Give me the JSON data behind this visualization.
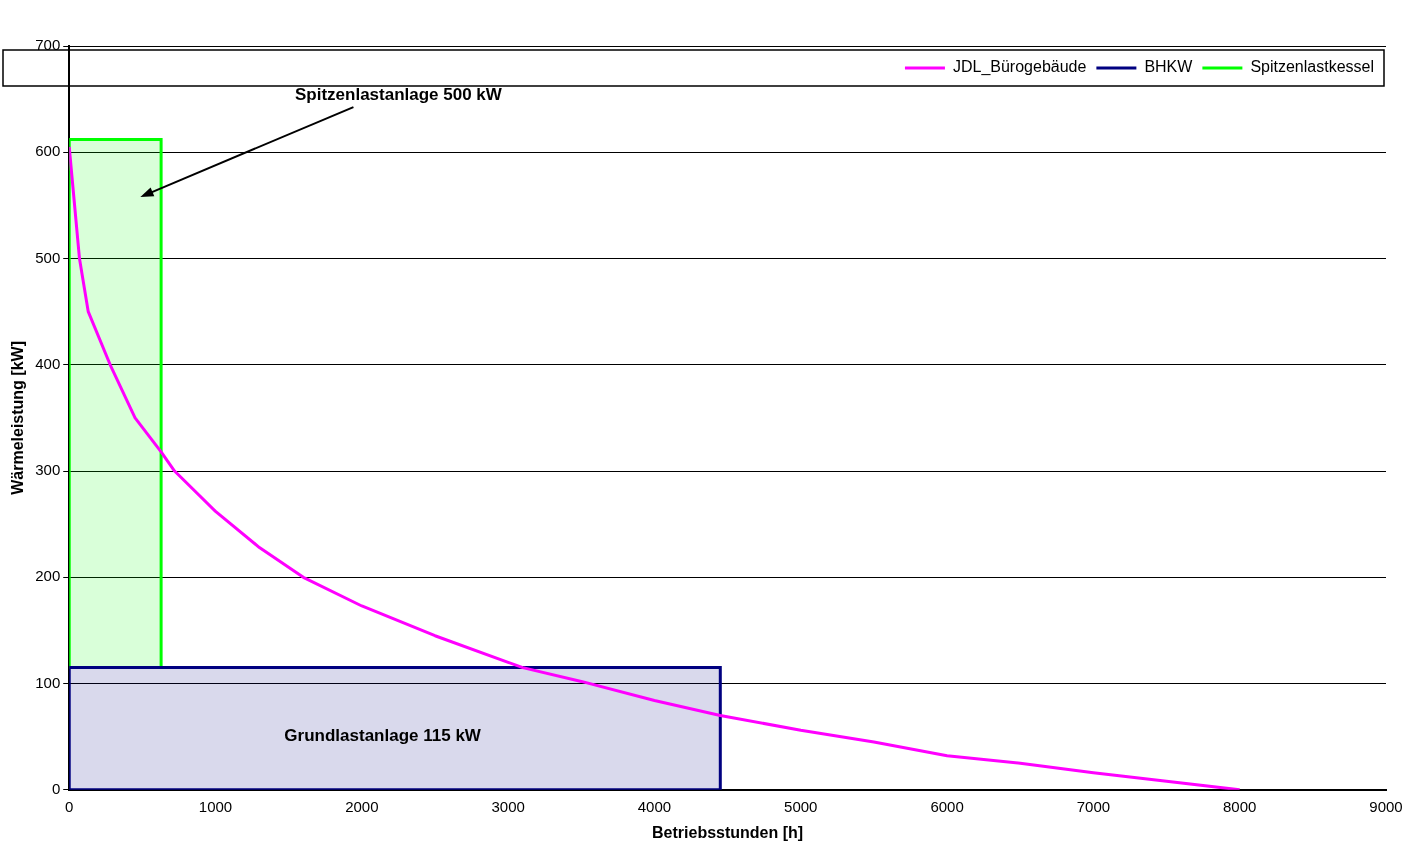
{
  "chart_data": {
    "type": "line",
    "xlabel": "Betriebsstunden [h]",
    "ylabel": "Wärmeleistung [kW]",
    "xlim": [
      0,
      9000
    ],
    "xticks": [
      0,
      1000,
      2000,
      3000,
      4000,
      5000,
      6000,
      7000,
      8000,
      9000
    ],
    "ylim": [
      0,
      700
    ],
    "yticks": [
      0,
      100,
      200,
      300,
      400,
      500,
      600,
      700
    ],
    "grid": "y",
    "legend": "top right",
    "marker": "none",
    "line_style": "solid",
    "series": [
      {
        "name": "JDL_Bürogebäude",
        "color": "#ff00ff",
        "x": [
          0,
          30,
          70,
          130,
          280,
          450,
          628,
          720,
          1000,
          1300,
          1600,
          2000,
          2500,
          3000,
          3100,
          3500,
          4000,
          4450,
          5000,
          5500,
          6000,
          6500,
          7000,
          7500,
          8000
        ],
        "values": [
          605,
          560,
          500,
          450,
          400,
          350,
          318,
          300,
          262,
          228,
          200,
          173,
          145,
          120,
          115,
          102,
          84,
          70,
          56,
          45,
          32,
          25,
          16,
          8,
          0
        ]
      },
      {
        "name": "BHKW",
        "color": "#000080",
        "type": "area",
        "x": [
          0,
          0,
          4450,
          4450,
          0
        ],
        "values": [
          0,
          115,
          115,
          0,
          0
        ]
      },
      {
        "name": "Spitzenlastkessel",
        "color": "#00ff00",
        "type": "area",
        "x": [
          0,
          0,
          628,
          628,
          0
        ],
        "values": [
          115,
          612,
          612,
          115,
          115
        ]
      }
    ],
    "annotations": [
      "Spitzenlastanlage 500 kW",
      "Grundlastanlage 115 kW"
    ]
  }
}
